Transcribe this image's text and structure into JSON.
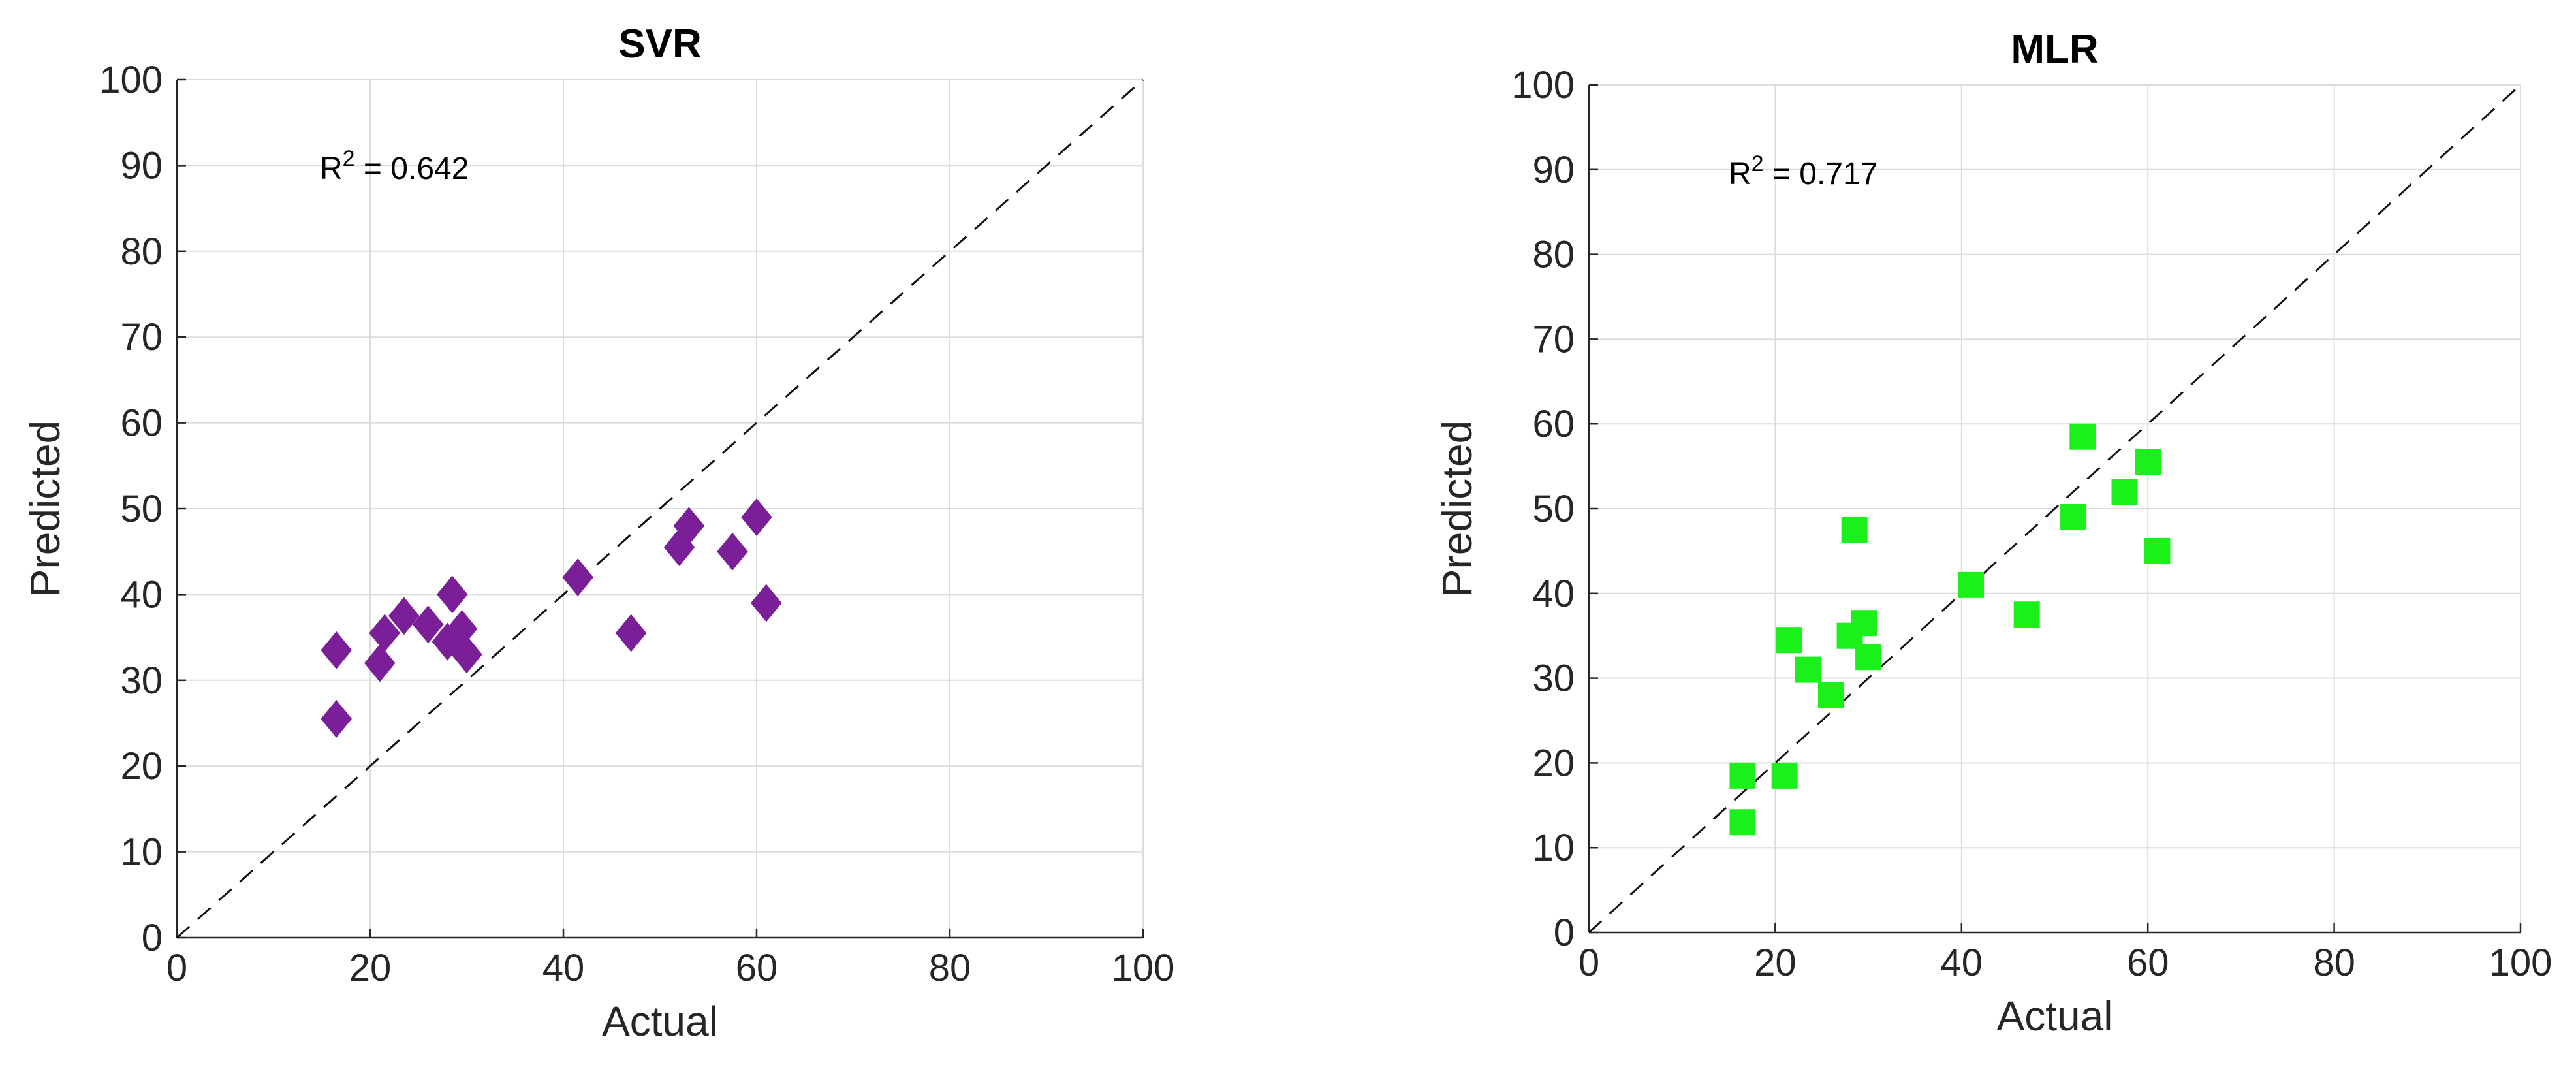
{
  "chart_data": [
    {
      "type": "scatter",
      "title": "SVR",
      "xlabel": "Actual",
      "ylabel": "Predicted",
      "xlim": [
        0,
        100
      ],
      "ylim": [
        0,
        100
      ],
      "xticks": [
        "0",
        "20",
        "40",
        "60",
        "80",
        "100"
      ],
      "yticks": [
        "0",
        "10",
        "20",
        "30",
        "40",
        "50",
        "60",
        "70",
        "80",
        "90",
        "100"
      ],
      "grid": true,
      "reference_line": "y = x (dashed)",
      "annotation": {
        "prefix": "R",
        "sup": "2",
        "value": " = 0.642"
      },
      "marker": "diamond",
      "color": "#7A1F97",
      "series": [
        {
          "points": [
            {
              "x": 16.5,
              "y": 33.5
            },
            {
              "x": 16.5,
              "y": 25.5
            },
            {
              "x": 21.0,
              "y": 32.0
            },
            {
              "x": 21.5,
              "y": 35.5
            },
            {
              "x": 23.5,
              "y": 37.5
            },
            {
              "x": 26.0,
              "y": 36.5
            },
            {
              "x": 28.0,
              "y": 34.5
            },
            {
              "x": 28.5,
              "y": 40.0
            },
            {
              "x": 29.5,
              "y": 36.0
            },
            {
              "x": 30.0,
              "y": 33.0
            },
            {
              "x": 41.5,
              "y": 42.0
            },
            {
              "x": 47.0,
              "y": 35.5
            },
            {
              "x": 52.0,
              "y": 45.5
            },
            {
              "x": 53.0,
              "y": 48.0
            },
            {
              "x": 57.5,
              "y": 45.0
            },
            {
              "x": 60.0,
              "y": 49.0
            },
            {
              "x": 61.0,
              "y": 39.0
            }
          ]
        }
      ]
    },
    {
      "type": "scatter",
      "title": "MLR",
      "xlabel": "Actual",
      "ylabel": "Predicted",
      "xlim": [
        0,
        100
      ],
      "ylim": [
        0,
        100
      ],
      "xticks": [
        "0",
        "20",
        "40",
        "60",
        "80",
        "100"
      ],
      "yticks": [
        "0",
        "10",
        "20",
        "30",
        "40",
        "50",
        "60",
        "70",
        "80",
        "90",
        "100"
      ],
      "grid": true,
      "reference_line": "y = x (dashed)",
      "annotation": {
        "prefix": "R",
        "sup": "2",
        "value": " = 0.717"
      },
      "marker": "square",
      "color": "#1AF01A",
      "series": [
        {
          "points": [
            {
              "x": 16.5,
              "y": 18.5
            },
            {
              "x": 16.5,
              "y": 13.0
            },
            {
              "x": 21.0,
              "y": 18.5
            },
            {
              "x": 21.5,
              "y": 34.5
            },
            {
              "x": 23.5,
              "y": 31.0
            },
            {
              "x": 26.0,
              "y": 28.0
            },
            {
              "x": 28.0,
              "y": 35.0
            },
            {
              "x": 28.5,
              "y": 47.5
            },
            {
              "x": 29.5,
              "y": 36.5
            },
            {
              "x": 30.0,
              "y": 32.5
            },
            {
              "x": 41.0,
              "y": 41.0
            },
            {
              "x": 47.0,
              "y": 37.5
            },
            {
              "x": 52.0,
              "y": 49.0
            },
            {
              "x": 53.0,
              "y": 58.5
            },
            {
              "x": 57.5,
              "y": 52.0
            },
            {
              "x": 60.0,
              "y": 55.5
            },
            {
              "x": 61.0,
              "y": 45.0
            }
          ]
        }
      ]
    }
  ]
}
